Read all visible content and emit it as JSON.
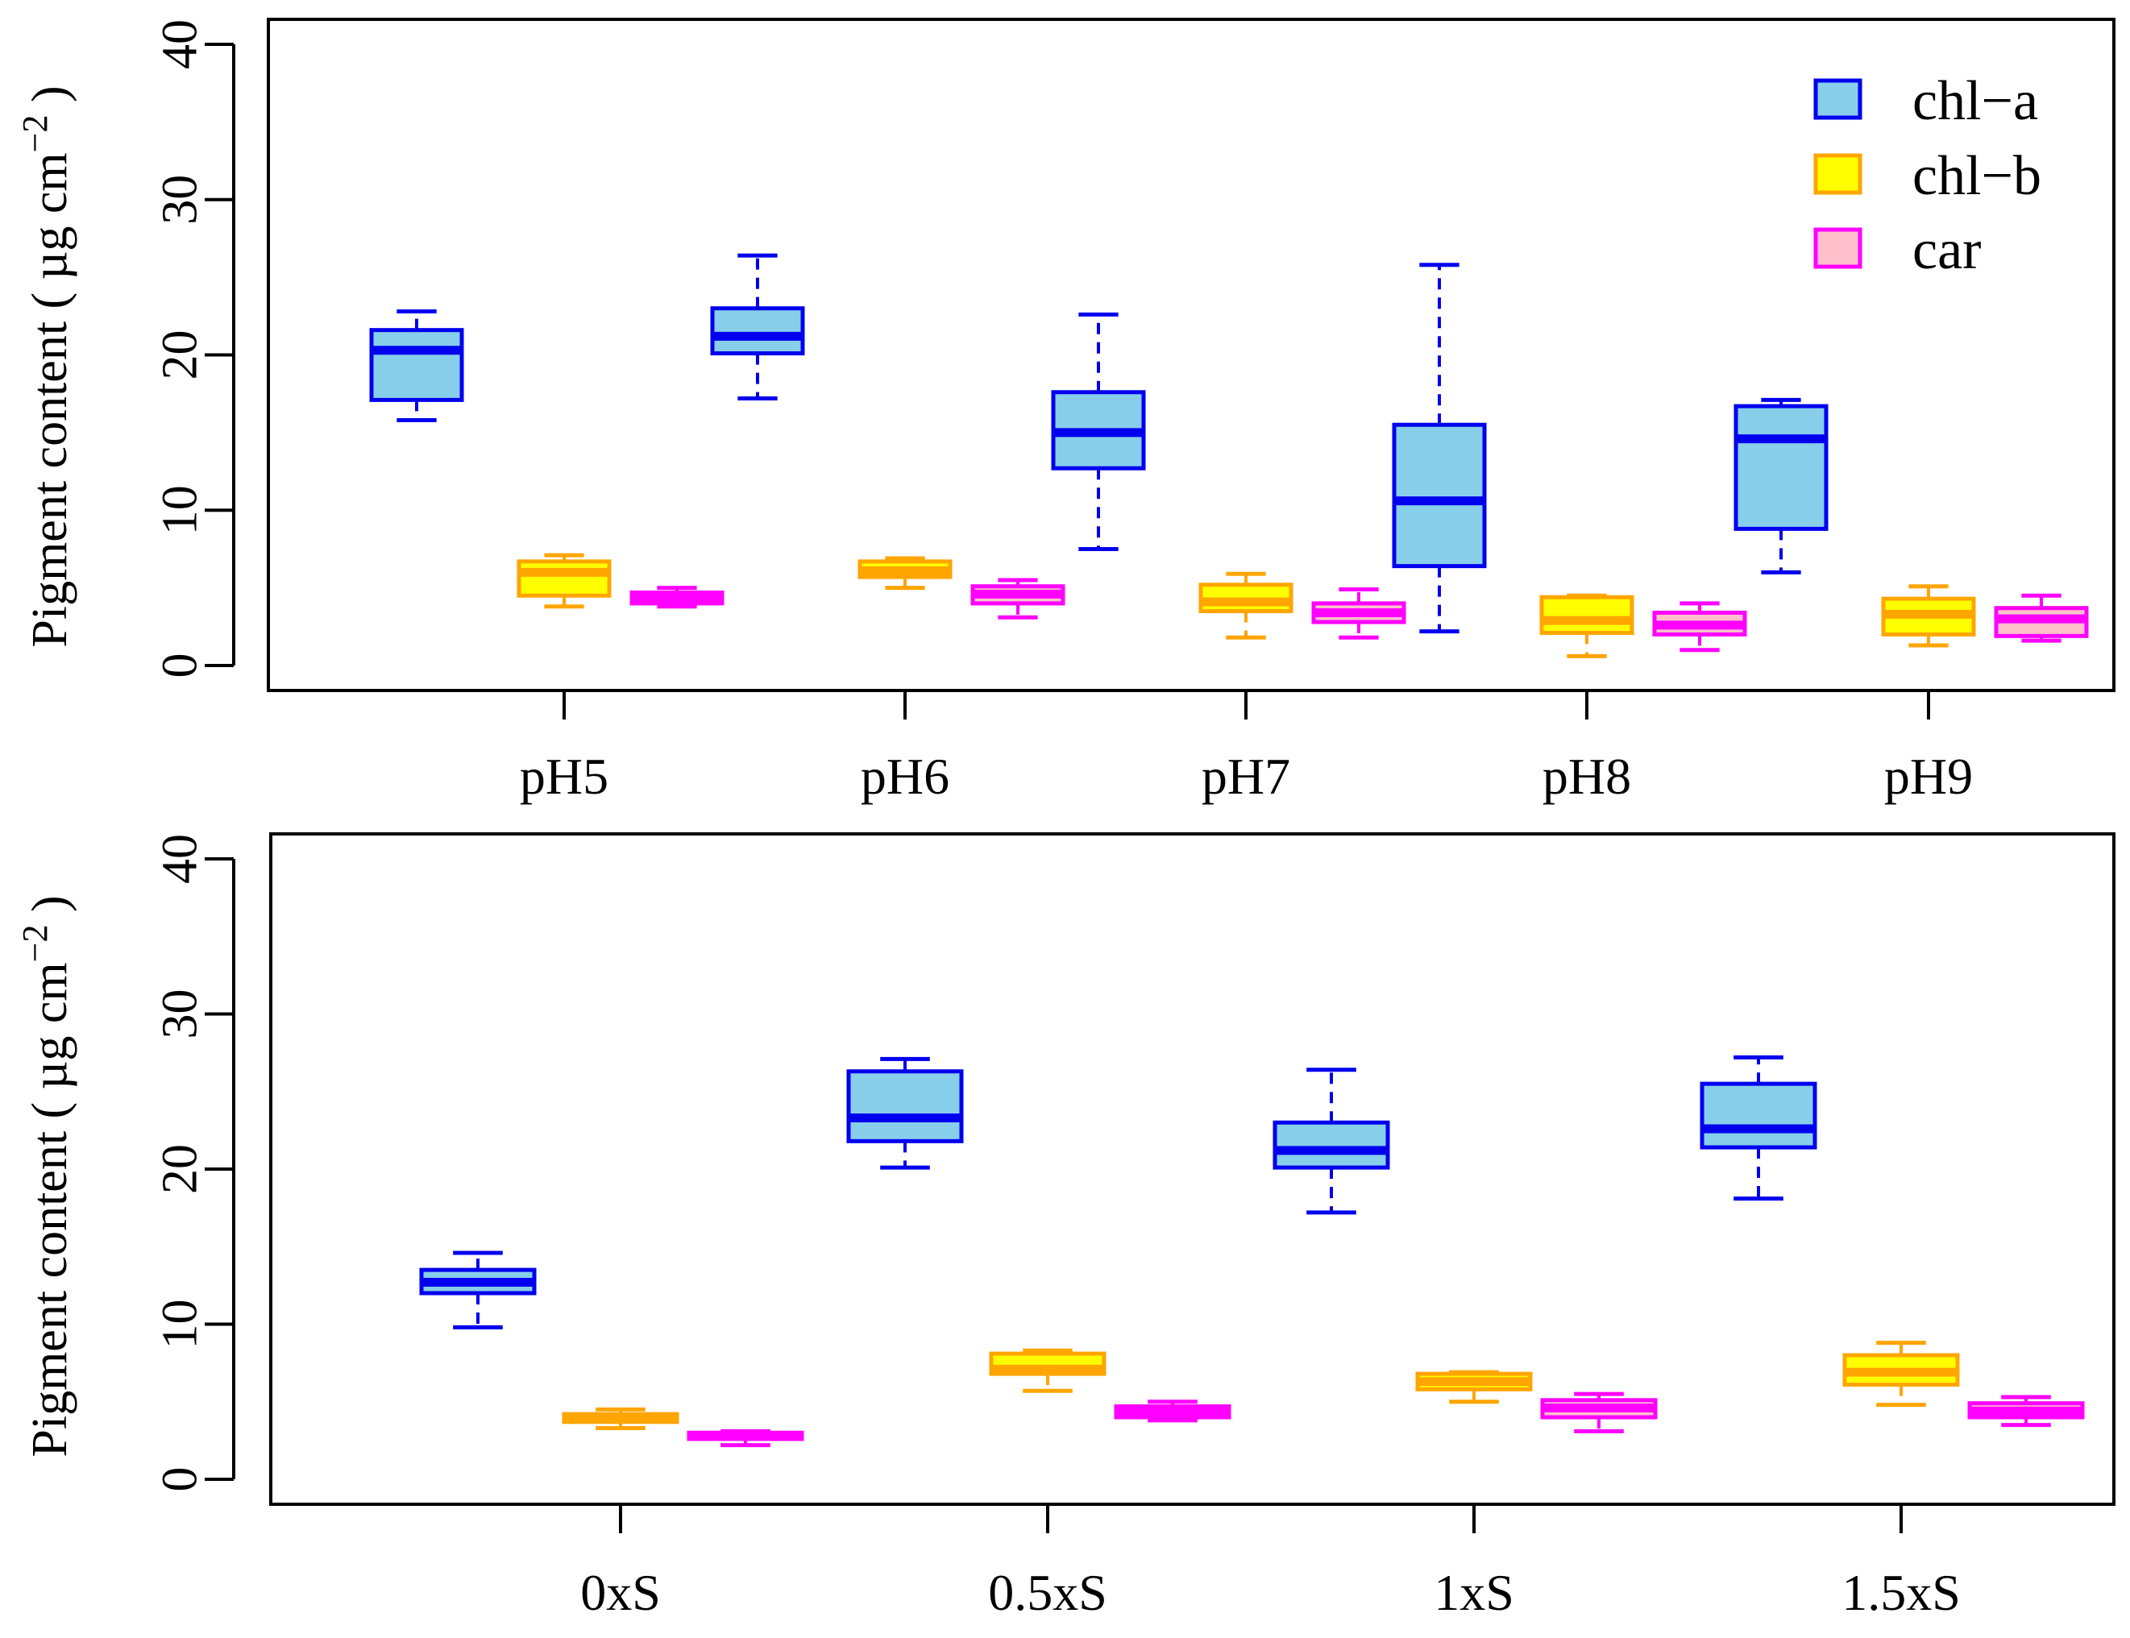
{
  "chart_data": [
    {
      "type": "box",
      "ylabel": "Pigment content ( µg cm",
      "ylabel_superscript": "−2",
      "ylabel_close": " )",
      "ylim": [
        0,
        40
      ],
      "yticks": [
        "0",
        "10",
        "20",
        "30",
        "40"
      ],
      "categories": [
        "pH5",
        "pH6",
        "pH7",
        "pH8",
        "pH9"
      ],
      "legend": {
        "position": "top-right"
      },
      "series": [
        {
          "name": "chl−a",
          "fill": "#87CEEB",
          "stroke": "#0000EE",
          "boxes": [
            {
              "min": 15.8,
              "q1": 17.1,
              "median": 20.3,
              "q3": 21.6,
              "max": 22.8
            },
            {
              "min": 17.2,
              "q1": 20.1,
              "median": 21.2,
              "q3": 23.0,
              "max": 26.4
            },
            {
              "min": 7.5,
              "q1": 12.7,
              "median": 15.0,
              "q3": 17.6,
              "max": 22.6
            },
            {
              "min": 2.2,
              "q1": 6.4,
              "median": 10.6,
              "q3": 15.5,
              "max": 25.8
            },
            {
              "min": 6.0,
              "q1": 8.8,
              "median": 14.6,
              "q3": 16.7,
              "max": 17.1
            }
          ]
        },
        {
          "name": "chl−b",
          "fill": "#FFFF00",
          "stroke": "#FFA500",
          "boxes": [
            {
              "min": 3.8,
              "q1": 4.5,
              "median": 6.0,
              "q3": 6.7,
              "max": 7.1
            },
            {
              "min": 5.0,
              "q1": 5.7,
              "median": 6.1,
              "q3": 6.7,
              "max": 6.9
            },
            {
              "min": 1.8,
              "q1": 3.5,
              "median": 4.1,
              "q3": 5.2,
              "max": 5.9
            },
            {
              "min": 0.6,
              "q1": 2.1,
              "median": 2.9,
              "q3": 4.4,
              "max": 4.5
            },
            {
              "min": 1.3,
              "q1": 2.0,
              "median": 3.3,
              "q3": 4.3,
              "max": 5.1
            }
          ]
        },
        {
          "name": "car",
          "fill": "#FFC0CB",
          "stroke": "#FF00FF",
          "boxes": [
            {
              "min": 3.8,
              "q1": 4.0,
              "median": 4.4,
              "q3": 4.7,
              "max": 5.0
            },
            {
              "min": 3.1,
              "q1": 4.0,
              "median": 4.6,
              "q3": 5.1,
              "max": 5.5
            },
            {
              "min": 1.8,
              "q1": 2.8,
              "median": 3.4,
              "q3": 4.0,
              "max": 4.9
            },
            {
              "min": 1.0,
              "q1": 2.0,
              "median": 2.6,
              "q3": 3.4,
              "max": 4.0
            },
            {
              "min": 1.6,
              "q1": 1.9,
              "median": 3.0,
              "q3": 3.7,
              "max": 4.5
            }
          ]
        }
      ]
    },
    {
      "type": "box",
      "ylabel": "Pigment content ( µg cm",
      "ylabel_superscript": "−2",
      "ylabel_close": " )",
      "ylim": [
        0,
        40
      ],
      "yticks": [
        "0",
        "10",
        "20",
        "30",
        "40"
      ],
      "categories": [
        "0xS",
        "0.5xS",
        "1xS",
        "1.5xS"
      ],
      "series": [
        {
          "name": "chl−a",
          "fill": "#87CEEB",
          "stroke": "#0000EE",
          "boxes": [
            {
              "min": 9.8,
              "q1": 12.0,
              "median": 12.7,
              "q3": 13.5,
              "max": 14.6
            },
            {
              "min": 20.1,
              "q1": 21.8,
              "median": 23.3,
              "q3": 26.3,
              "max": 27.1
            },
            {
              "min": 17.2,
              "q1": 20.1,
              "median": 21.2,
              "q3": 23.0,
              "max": 26.4
            },
            {
              "min": 18.1,
              "q1": 21.4,
              "median": 22.6,
              "q3": 25.5,
              "max": 27.2
            }
          ]
        },
        {
          "name": "chl−b",
          "fill": "#FFFF00",
          "stroke": "#FFA500",
          "boxes": [
            {
              "min": 3.3,
              "q1": 3.7,
              "median": 3.9,
              "q3": 4.2,
              "max": 4.5
            },
            {
              "min": 5.7,
              "q1": 6.8,
              "median": 7.1,
              "q3": 8.1,
              "max": 8.3
            },
            {
              "min": 5.0,
              "q1": 5.8,
              "median": 6.3,
              "q3": 6.8,
              "max": 6.9
            },
            {
              "min": 4.8,
              "q1": 6.1,
              "median": 6.9,
              "q3": 8.0,
              "max": 8.8
            }
          ]
        },
        {
          "name": "car",
          "fill": "#FFC0CB",
          "stroke": "#FF00FF",
          "boxes": [
            {
              "min": 2.2,
              "q1": 2.6,
              "median": 2.8,
              "q3": 3.0,
              "max": 3.1
            },
            {
              "min": 3.8,
              "q1": 4.0,
              "median": 4.4,
              "q3": 4.7,
              "max": 5.0
            },
            {
              "min": 3.1,
              "q1": 4.0,
              "median": 4.6,
              "q3": 5.1,
              "max": 5.5
            },
            {
              "min": 3.5,
              "q1": 4.0,
              "median": 4.4,
              "q3": 4.9,
              "max": 5.3
            }
          ]
        }
      ]
    }
  ]
}
